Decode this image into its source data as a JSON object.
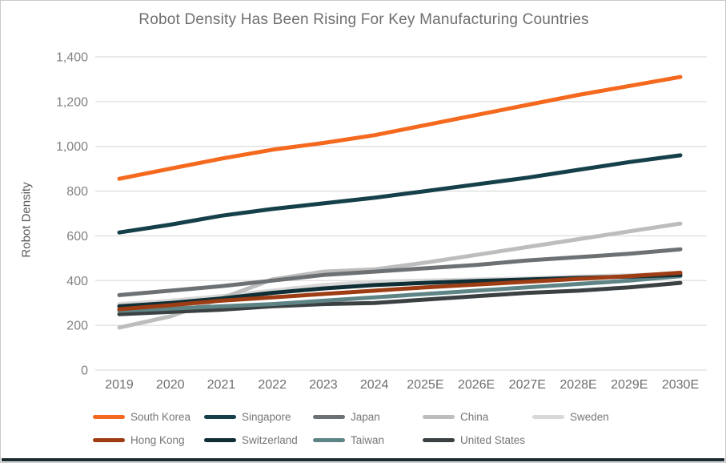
{
  "title": "Robot Density Has Been Rising For Key Manufacturing Countries",
  "chart_data": {
    "type": "line",
    "x": [
      "2019",
      "2020",
      "2021",
      "2022",
      "2023",
      "2024",
      "2025E",
      "2026E",
      "2027E",
      "2028E",
      "2029E",
      "2030E"
    ],
    "xlabel": "",
    "ylabel": "Robot Density",
    "ylim": [
      0,
      1400
    ],
    "ytick_step": 200,
    "yticks": [
      "0",
      "200",
      "400",
      "600",
      "800",
      "1,000",
      "1,200",
      "1,400"
    ],
    "grid": true,
    "legend_position": "bottom",
    "series": [
      {
        "name": "South Korea",
        "color": "#F4691E",
        "values": [
          855,
          900,
          945,
          985,
          1015,
          1050,
          1095,
          1140,
          1185,
          1230,
          1270,
          1310
        ]
      },
      {
        "name": "Singapore",
        "color": "#15404A",
        "values": [
          615,
          650,
          690,
          720,
          745,
          770,
          800,
          830,
          860,
          895,
          930,
          960
        ]
      },
      {
        "name": "Japan",
        "color": "#6E7173",
        "values": [
          335,
          355,
          375,
          400,
          425,
          440,
          455,
          470,
          490,
          505,
          520,
          540
        ]
      },
      {
        "name": "China",
        "color": "#BDBDBD",
        "values": [
          190,
          240,
          320,
          405,
          440,
          450,
          480,
          515,
          550,
          585,
          620,
          655
        ]
      },
      {
        "name": "Sweden",
        "color": "#D8D8D8",
        "values": [
          295,
          310,
          330,
          355,
          380,
          395,
          400,
          405,
          410,
          418,
          424,
          430
        ]
      },
      {
        "name": "Hong Kong",
        "color": "#9E3D14",
        "values": [
          272,
          290,
          310,
          325,
          340,
          355,
          370,
          382,
          395,
          408,
          420,
          435
        ]
      },
      {
        "name": "Switzerland",
        "color": "#0F2E35",
        "values": [
          285,
          300,
          320,
          345,
          365,
          380,
          390,
          398,
          405,
          412,
          418,
          425
        ]
      },
      {
        "name": "Taiwan",
        "color": "#5F8486",
        "values": [
          265,
          275,
          285,
          295,
          310,
          325,
          340,
          355,
          370,
          385,
          400,
          420
        ]
      },
      {
        "name": "United States",
        "color": "#3B4042",
        "values": [
          250,
          260,
          270,
          285,
          295,
          300,
          315,
          330,
          345,
          355,
          370,
          390
        ]
      }
    ],
    "draw_order": [
      "Sweden",
      "China",
      "Japan",
      "United States",
      "Taiwan",
      "Switzerland",
      "Hong Kong",
      "Singapore",
      "South Korea"
    ],
    "colors": {
      "gridline": "#DEDEDE",
      "y_tick_text": "#828282",
      "x_tick_text": "#6E6E6E",
      "title_text": "#6F6F6F",
      "legend_text": "#767676",
      "bottom_accent_bar": "#1C2B30",
      "card_border": "#C9C9C9"
    }
  }
}
